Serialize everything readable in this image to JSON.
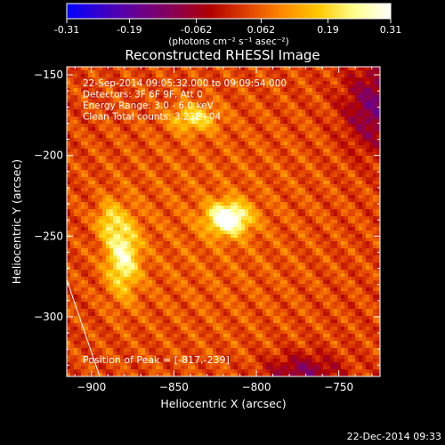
{
  "colorbar": {
    "tick_labels": [
      "-0.31",
      "-0.19",
      "-0.062",
      "0.062",
      "0.19",
      "0.31"
    ],
    "tick_values": [
      -0.31,
      -0.19,
      -0.062,
      0.062,
      0.19,
      0.31
    ],
    "range": [
      -0.31,
      0.31
    ],
    "units": "(photons cm⁻² s⁻¹ asec⁻²)",
    "colormap": [
      "#0000ff",
      "#3a00c8",
      "#6a008e",
      "#8a0050",
      "#b00000",
      "#e04000",
      "#ff8a00",
      "#ffc800",
      "#ffff90",
      "#ffffff"
    ]
  },
  "chart_data": {
    "type": "heatmap",
    "title": "Reconstructed RHESSI Image",
    "xlabel": "Heliocentric X (arcsec)",
    "ylabel": "Heliocentric Y (arcsec)",
    "xlim": [
      -915,
      -725
    ],
    "ylim": [
      -337,
      -145
    ],
    "x_ticks": [
      -900,
      -850,
      -800,
      -750
    ],
    "y_ticks": [
      -150,
      -200,
      -250,
      -300
    ],
    "x_tick_labels": [
      "−900",
      "−850",
      "−800",
      "−750"
    ],
    "y_tick_labels": [
      "−150",
      "−200",
      "−250",
      "−300"
    ],
    "sources": [
      {
        "x": -817,
        "y": -239,
        "peak": 0.31,
        "sx": 9,
        "sy": 7
      },
      {
        "x": -881,
        "y": -262,
        "peak": 0.22,
        "sx": 7,
        "sy": 17
      },
      {
        "x": -890,
        "y": -240,
        "peak": 0.12,
        "sx": 5,
        "sy": 8
      },
      {
        "x": -838,
        "y": -177,
        "peak": 0.16,
        "sx": 10,
        "sy": 6
      }
    ],
    "solar_limb": [
      [
        -915,
        -277
      ],
      [
        -895,
        -337
      ]
    ],
    "annotations": [
      "22-Sep-2014 09:05:32.000 to 09:09:54.000",
      "Detectors: 3F 6F 9F, Att 0",
      "Energy Range: 3.0 - 6.0 keV",
      "Clean    Total counts: 3.23E+04"
    ],
    "peak_label": "Position of Peak = [-817,-239]"
  },
  "footer": {
    "timestamp": "22-Dec-2014 09:33"
  }
}
